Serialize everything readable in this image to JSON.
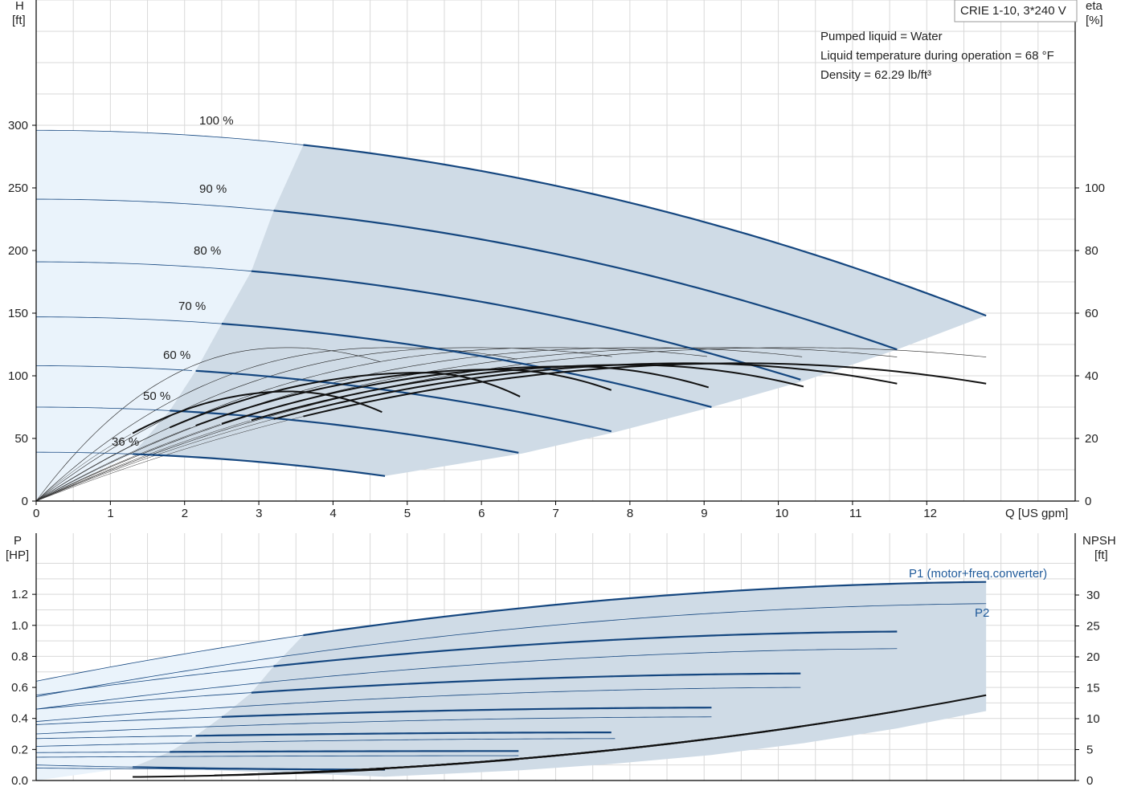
{
  "title_box": "CRIE 1-10, 3*240 V",
  "info": [
    "Pumped liquid = Water",
    "Liquid temperature during operation = 68 °F",
    "Density = 62.29 lb/ft³"
  ],
  "colors": {
    "curve_blue": "#14467f",
    "fill_region": "#cfdbe6",
    "fill_light": "#eaf3fb",
    "grid": "#d9d9d9",
    "eta_black": "#111111"
  },
  "chart_data": [
    {
      "type": "line",
      "name": "head_eta",
      "left_axis_label": [
        "H",
        "[ft]"
      ],
      "right_axis_label": [
        "eta",
        "[%]"
      ],
      "x_axis_label": "Q [US gpm]",
      "xlim": [
        0,
        14
      ],
      "ylim": [
        0,
        300
      ],
      "eta_lim": [
        0,
        100
      ],
      "x_ticks": [
        0,
        1,
        2,
        3,
        4,
        5,
        6,
        7,
        8,
        9,
        10,
        11,
        12
      ],
      "y_ticks": [
        0,
        50,
        100,
        150,
        200,
        250,
        300
      ],
      "eta_ticks": [
        0,
        20,
        40,
        60,
        80,
        100
      ],
      "grid": true,
      "speed_curves": [
        {
          "label": "100 %",
          "H0": 296,
          "Qmax": 12.8,
          "Hend": 148,
          "Qmin": 3.6
        },
        {
          "label": "90 %",
          "H0": 241,
          "Qmax": 11.6,
          "Hend": 121,
          "Qmin": 3.2
        },
        {
          "label": "80 %",
          "H0": 191,
          "Qmax": 10.35,
          "Hend": 96,
          "Qmin": 2.9
        },
        {
          "label": "70 %",
          "H0": 147,
          "Qmax": 9.1,
          "Hend": 75,
          "Qmin": 2.5
        },
        {
          "label": "60 %",
          "H0": 108,
          "Qmax": 7.8,
          "Hend": 55,
          "Qmin": 2.15
        },
        {
          "label": "50 %",
          "H0": 75,
          "Qmax": 6.55,
          "Hend": 38,
          "Qmin": 1.8
        },
        {
          "label": "36 %",
          "H0": 39,
          "Qmax": 4.7,
          "Hend": 20,
          "Qmin": 1.3
        }
      ],
      "eta_curves": [
        {
          "Qmax": 12.8,
          "eta_peak": 44,
          "Qpeak": 9.5,
          "eta_end": 37.5,
          "Qmin": 3.6
        },
        {
          "Qmax": 11.6,
          "eta_peak": 44,
          "Qpeak": 8.8,
          "eta_end": 37.5,
          "Qmin": 3.2
        },
        {
          "Qmax": 10.35,
          "eta_peak": 43.5,
          "Qpeak": 8.0,
          "eta_end": 36.5,
          "Qmin": 2.9
        },
        {
          "Qmax": 9.1,
          "eta_peak": 43,
          "Qpeak": 7.2,
          "eta_end": 36,
          "Qmin": 2.5
        },
        {
          "Qmax": 7.8,
          "eta_peak": 42,
          "Qpeak": 6.2,
          "eta_end": 35,
          "Qmin": 2.15
        },
        {
          "Qmax": 6.55,
          "eta_peak": 41,
          "Qpeak": 5.2,
          "eta_end": 33,
          "Qmin": 1.8
        },
        {
          "Qmax": 4.7,
          "eta_peak": 35,
          "Qpeak": 3.4,
          "eta_end": 28,
          "Qmin": 1.3
        }
      ],
      "eta_thin_peaks": [
        {
          "Qpeak": 3.4,
          "eta_peak": 49,
          "Qend": 4.7,
          "eta_end": 44
        },
        {
          "Qpeak": 4.8,
          "eta_peak": 49,
          "Qend": 6.55,
          "eta_end": 45
        },
        {
          "Qpeak": 5.9,
          "eta_peak": 49,
          "Qend": 7.8,
          "eta_end": 46
        },
        {
          "Qpeak": 7.0,
          "eta_peak": 49,
          "Qend": 9.1,
          "eta_end": 46
        },
        {
          "Qpeak": 8.2,
          "eta_peak": 49,
          "Qend": 10.35,
          "eta_end": 46
        },
        {
          "Qpeak": 9.3,
          "eta_peak": 49,
          "Qend": 11.6,
          "eta_end": 46
        },
        {
          "Qpeak": 10.3,
          "eta_peak": 49,
          "Qend": 12.8,
          "eta_end": 46
        }
      ]
    },
    {
      "type": "line",
      "name": "power_npsh",
      "left_axis_label": [
        "P",
        "[HP]"
      ],
      "right_axis_label": [
        "NPSH",
        "[ft]"
      ],
      "xlim": [
        0,
        14
      ],
      "ylim": [
        0,
        1.4
      ],
      "npsh_lim": [
        0,
        35
      ],
      "x_ticks": [
        0,
        1,
        2,
        3,
        4,
        5,
        6,
        7,
        8,
        9,
        10,
        11,
        12
      ],
      "y_ticks": [
        0.0,
        0.2,
        0.4,
        0.6,
        0.8,
        1.0,
        1.2
      ],
      "y_tick_labels": [
        "0.0",
        "0.2",
        "0.4",
        "0.6",
        "0.8",
        "1.0",
        "1.2"
      ],
      "npsh_ticks": [
        0,
        5,
        10,
        15,
        20,
        25,
        30
      ],
      "grid": true,
      "series_labels": [
        "P1 (motor+freq.converter)",
        "P2"
      ],
      "p1_curves": [
        {
          "P0": 0.64,
          "Pend": 1.28,
          "Qmin": 3.6,
          "Qmax": 12.8
        },
        {
          "P0": 0.55,
          "Pend": 0.96,
          "Qmin": 3.2,
          "Qmax": 11.6
        },
        {
          "P0": 0.46,
          "Pend": 0.69,
          "Qmin": 2.9,
          "Qmax": 10.35
        },
        {
          "P0": 0.36,
          "Pend": 0.47,
          "Qmin": 2.5,
          "Qmax": 9.1
        },
        {
          "P0": 0.27,
          "Pend": 0.31,
          "Qmin": 2.15,
          "Qmax": 7.8
        },
        {
          "P0": 0.18,
          "Pend": 0.19,
          "Qmin": 1.8,
          "Qmax": 6.55
        },
        {
          "P0": 0.1,
          "Pend": 0.07,
          "Qmin": 1.3,
          "Qmax": 4.7
        }
      ],
      "p2_curves": [
        {
          "P0": 0.54,
          "Pend": 1.14,
          "Qmax": 12.8
        },
        {
          "P0": 0.46,
          "Pend": 0.85,
          "Qmax": 11.6
        },
        {
          "P0": 0.38,
          "Pend": 0.6,
          "Qmax": 10.35
        },
        {
          "P0": 0.3,
          "Pend": 0.41,
          "Qmax": 9.1
        },
        {
          "P0": 0.22,
          "Pend": 0.27,
          "Qmax": 7.8
        },
        {
          "P0": 0.15,
          "Pend": 0.16,
          "Qmax": 6.55
        },
        {
          "P0": 0.08,
          "Pend": 0.07,
          "Qmax": 4.7
        }
      ],
      "npsh_curves": [
        {
          "Qmax": 12.8,
          "Nend": 13.8,
          "Qstart": 4.5
        },
        {
          "Qmax": 11.6,
          "Nend": 11.2,
          "Qstart": 4.0
        },
        {
          "Qmax": 10.35,
          "Nend": 8.8,
          "Qstart": 3.6
        },
        {
          "Qmax": 9.1,
          "Nend": 6.8,
          "Qstart": 3.2
        },
        {
          "Qmax": 7.8,
          "Nend": 5.0,
          "Qstart": 2.8
        },
        {
          "Qmax": 6.55,
          "Nend": 3.5,
          "Qstart": 2.4
        },
        {
          "Qmax": 4.7,
          "Nend": 1.8,
          "Qstart": 1.3
        }
      ]
    }
  ]
}
